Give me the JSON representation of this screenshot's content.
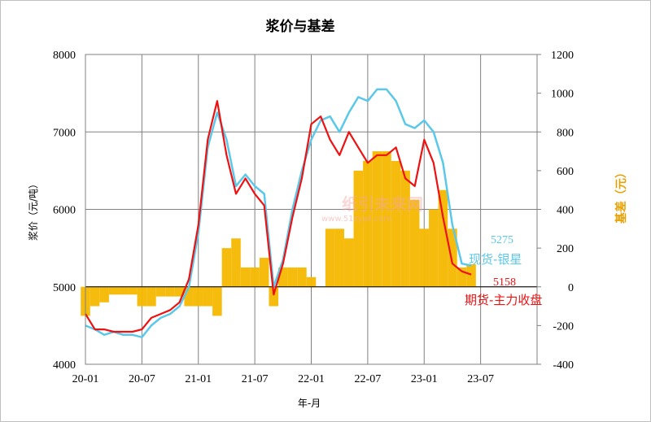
{
  "chart_data": {
    "type": "line",
    "title": "浆价与基差",
    "xlabel": "年-月",
    "ylabel": "浆价（元/吨）",
    "y2label": "基差（元）",
    "x_ticks": [
      "20-01",
      "20-07",
      "21-01",
      "21-07",
      "22-01",
      "22-07",
      "23-01",
      "23-07"
    ],
    "ylim": [
      4000,
      8000
    ],
    "y_ticks": [
      "4000",
      "5000",
      "6000",
      "7000",
      "8000"
    ],
    "y2lim": [
      -400,
      1200
    ],
    "y2_ticks": [
      "-400",
      "-200",
      "0",
      "200",
      "400",
      "600",
      "800",
      "1000",
      "1200"
    ],
    "grid": true,
    "colors": {
      "spot": "#5bc8ea",
      "futures": "#ee1111",
      "basis": "#f5b800"
    },
    "x": [
      "2020-01",
      "2020-02",
      "2020-03",
      "2020-04",
      "2020-05",
      "2020-06",
      "2020-07",
      "2020-08",
      "2020-09",
      "2020-10",
      "2020-11",
      "2020-12",
      "2021-01",
      "2021-02",
      "2021-03",
      "2021-04",
      "2021-05",
      "2021-06",
      "2021-07",
      "2021-08",
      "2021-09",
      "2021-10",
      "2021-11",
      "2021-12",
      "2022-01",
      "2022-02",
      "2022-03",
      "2022-04",
      "2022-05",
      "2022-06",
      "2022-07",
      "2022-08",
      "2022-09",
      "2022-10",
      "2022-11",
      "2022-12",
      "2023-01",
      "2023-02",
      "2023-03",
      "2023-04",
      "2023-05",
      "2023-06"
    ],
    "series": [
      {
        "name": "现货-银星",
        "last_label": "5275",
        "values": [
          4500,
          4450,
          4380,
          4420,
          4380,
          4380,
          4350,
          4500,
          4600,
          4650,
          4750,
          5000,
          5700,
          6800,
          7250,
          6900,
          6300,
          6450,
          6300,
          6200,
          5000,
          5350,
          6000,
          6500,
          6900,
          7150,
          7200,
          7000,
          7250,
          7450,
          7400,
          7550,
          7550,
          7400,
          7100,
          7050,
          7150,
          7000,
          6600,
          5800,
          5300,
          5275
        ]
      },
      {
        "name": "期货-主力收盘",
        "last_label": "5158",
        "values": [
          4650,
          4450,
          4450,
          4420,
          4420,
          4420,
          4450,
          4600,
          4650,
          4700,
          4800,
          5100,
          5800,
          6900,
          7400,
          6700,
          6200,
          6400,
          6200,
          6050,
          4900,
          5300,
          5900,
          6400,
          7100,
          7200,
          6900,
          6700,
          7000,
          6800,
          6600,
          6700,
          6700,
          6800,
          6400,
          6300,
          6900,
          6600,
          5900,
          5300,
          5200,
          5158
        ]
      },
      {
        "name": "基差",
        "values": [
          -150,
          -100,
          -80,
          -40,
          -40,
          -40,
          -100,
          -100,
          -50,
          -50,
          -50,
          -100,
          -100,
          -100,
          -150,
          200,
          250,
          100,
          100,
          150,
          -100,
          100,
          100,
          100,
          50,
          0,
          300,
          300,
          250,
          600,
          650,
          700,
          700,
          650,
          600,
          450,
          300,
          400,
          500,
          300,
          100,
          117
        ]
      }
    ]
  }
}
